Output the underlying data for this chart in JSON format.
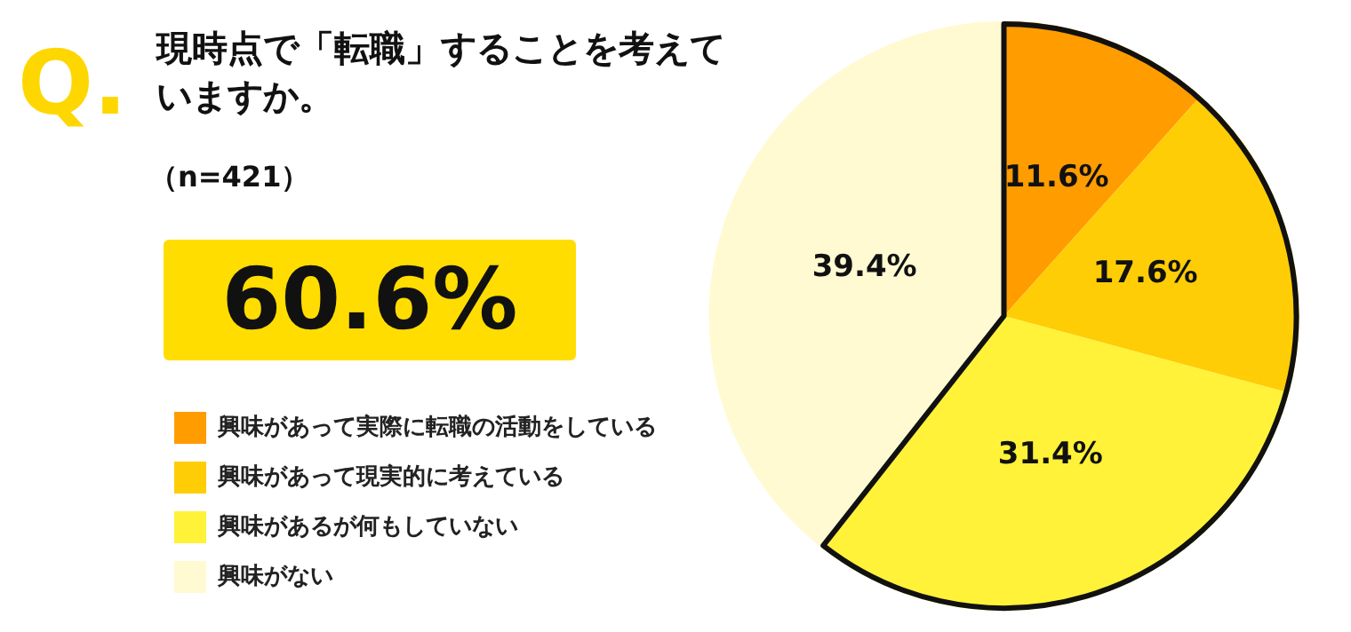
{
  "chart_data": {
    "type": "pie",
    "title": "現時点で「転職」することを考えていますか。",
    "subtitle": "（n=421）",
    "annotations": [
      "Q.",
      "60.6%"
    ],
    "categories": [
      "興味があって実際に転職の活動をしている",
      "興味があって現実的に考えている",
      "興味があるが何もしていない",
      "興味がない"
    ],
    "values": [
      11.6,
      17.6,
      31.4,
      39.4
    ],
    "colors": [
      "#ff9c00",
      "#ffcd05",
      "#fff238",
      "#fffad2"
    ],
    "value_labels": [
      "11.6%",
      "17.6%",
      "31.4%",
      "39.4%"
    ],
    "legend": "left"
  }
}
